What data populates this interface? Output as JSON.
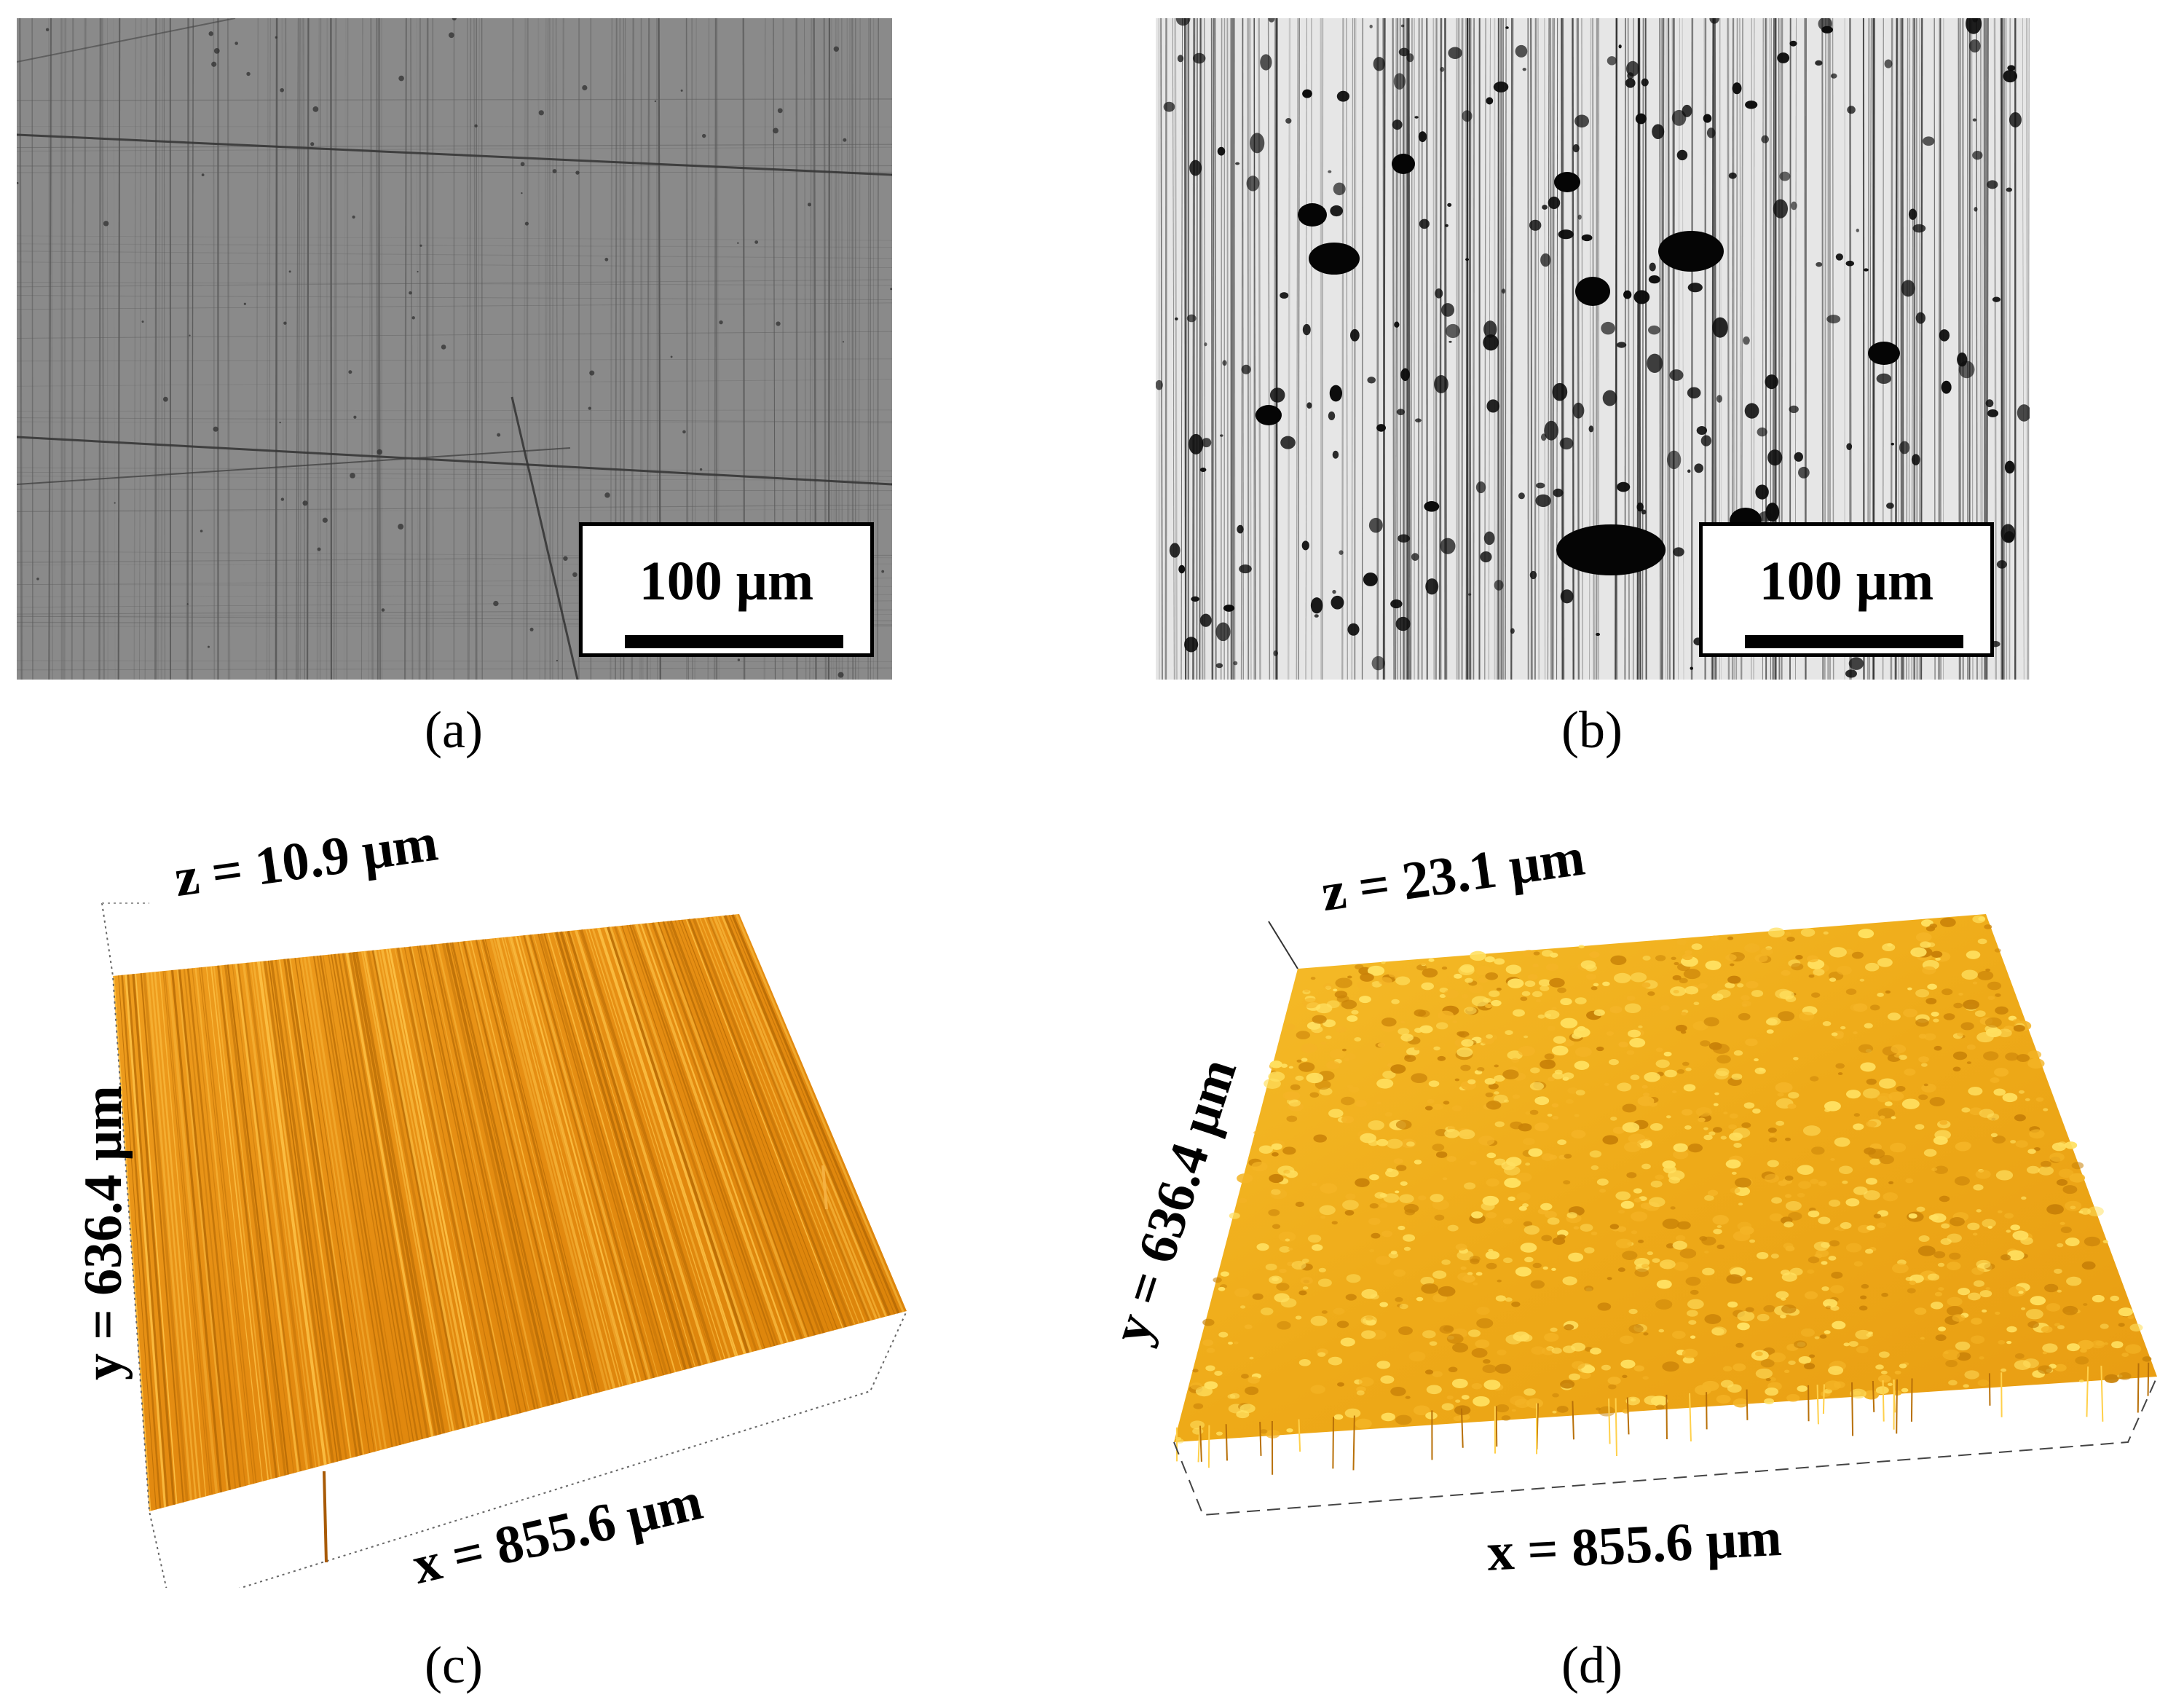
{
  "figure": {
    "panel_a": {
      "caption": "(a)",
      "scale_bar_label": "100 μm"
    },
    "panel_b": {
      "caption": "(b)",
      "scale_bar_label": "100 μm"
    },
    "panel_c": {
      "caption": "(c)",
      "z_label": "z = 10.9 μm",
      "y_label": "y = 636.4 μm",
      "x_label": "x = 855.6 μm"
    },
    "panel_d": {
      "caption": "(d)",
      "z_label": "z = 23.1 μm",
      "y_label": "y = 636.4 μm",
      "x_label": "x = 855.6 μm"
    }
  },
  "colors": {
    "micrograph_a_background": "#8a8a8a",
    "micrograph_b_background": "#e6e6e6",
    "surface_c": "#e8900f",
    "surface_d": "#f0b020"
  }
}
